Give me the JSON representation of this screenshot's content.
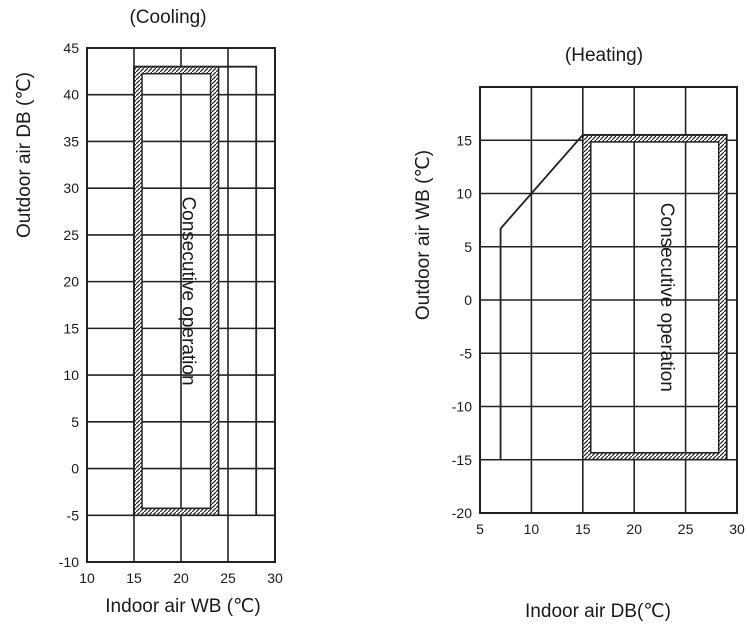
{
  "chart_data": [
    {
      "type": "operating-range",
      "title": "(Cooling)",
      "xlabel": "Indoor air WB (℃)",
      "ylabel": "Outdoor air DB (℃)",
      "xlim": [
        10,
        30
      ],
      "ylim": [
        -10,
        45
      ],
      "xticks": [
        10,
        15,
        20,
        25,
        30
      ],
      "yticks": [
        45,
        40,
        35,
        30,
        25,
        20,
        15,
        10,
        5,
        0,
        -5,
        -10
      ],
      "grid": true,
      "outer_boundary": [
        [
          15,
          -5
        ],
        [
          15,
          43
        ],
        [
          28,
          43
        ],
        [
          28,
          -5
        ]
      ],
      "continuous_zone": {
        "label": "Consecutive operation",
        "x": [
          15,
          24
        ],
        "y": [
          -5,
          43
        ]
      }
    },
    {
      "type": "operating-range",
      "title": "(Heating)",
      "xlabel": "Indoor air DB(℃)",
      "ylabel": "Outdoor air WB (℃)",
      "xlim": [
        5,
        30
      ],
      "ylim": [
        -20,
        20
      ],
      "xticks": [
        5,
        10,
        15,
        20,
        25,
        30
      ],
      "yticks": [
        15,
        10,
        5,
        0,
        -5,
        -10,
        -15,
        -20
      ],
      "grid": true,
      "outer_boundary": [
        [
          7,
          -15
        ],
        [
          7,
          6.7
        ],
        [
          15,
          15.5
        ],
        [
          29,
          15.5
        ],
        [
          29,
          -15
        ]
      ],
      "continuous_zone": {
        "label": "Consecutive operation",
        "x": [
          15,
          29
        ],
        "y": [
          -15,
          15.5
        ]
      }
    }
  ]
}
